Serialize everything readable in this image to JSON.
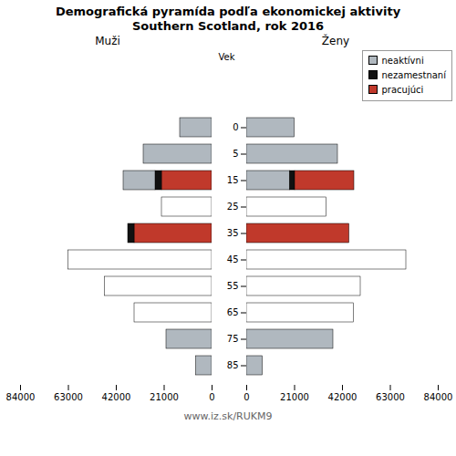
{
  "title": "Demografická pyramída podľa ekonomickej aktivity",
  "subtitle": "Southern Scotland, rok 2016",
  "caption": "www.iz.sk/RUKM9",
  "chart_data": [
    {
      "type": "bar",
      "title": "Muži",
      "orientation": "horizontal",
      "stacked": true,
      "categories": [
        85,
        75,
        65,
        55,
        45,
        35,
        25,
        15,
        5,
        0
      ],
      "series": [
        {
          "name": "pracujúci",
          "color": "#c0392b",
          "values": [
            0,
            0,
            0,
            0,
            0,
            34000,
            0,
            22000,
            0,
            0
          ]
        },
        {
          "name": "nezamestnaní",
          "color": "#111111",
          "values": [
            0,
            0,
            0,
            0,
            0,
            2800,
            0,
            2800,
            0,
            0
          ]
        },
        {
          "name": "neaktívni",
          "color": "#b0b8bf",
          "colors": [
            "#b0b8bf",
            "#b0b8bf",
            "#ffffff",
            "#ffffff",
            "#ffffff",
            "#b0b8bf",
            "#ffffff",
            "#b0b8bf",
            "#b0b8bf",
            "#b0b8bf"
          ],
          "values": [
            7000,
            20000,
            34000,
            47000,
            63000,
            0,
            22000,
            14000,
            30000,
            14000
          ]
        }
      ],
      "xlim": [
        84000,
        0
      ],
      "xticks": [
        84000,
        63000,
        42000,
        21000,
        0
      ],
      "tick_labels": "x",
      "grid": false
    },
    {
      "type": "bar",
      "title": "Ženy",
      "ylabel": "Vek",
      "orientation": "horizontal",
      "stacked": true,
      "categories": [
        85,
        75,
        65,
        55,
        45,
        35,
        25,
        15,
        5,
        0
      ],
      "series": [
        {
          "name": "neaktívni",
          "color": "#b0b8bf",
          "colors": [
            "#b0b8bf",
            "#b0b8bf",
            "#ffffff",
            "#ffffff",
            "#ffffff",
            "#b0b8bf",
            "#ffffff",
            "#b0b8bf",
            "#b0b8bf",
            "#b0b8bf"
          ],
          "values": [
            7000,
            38000,
            47000,
            50000,
            70000,
            0,
            35000,
            19000,
            40000,
            21000
          ]
        },
        {
          "name": "nezamestnaní",
          "color": "#111111",
          "values": [
            0,
            0,
            0,
            0,
            0,
            0,
            0,
            2200,
            0,
            0
          ]
        },
        {
          "name": "pracujúci",
          "color": "#c0392b",
          "values": [
            0,
            0,
            0,
            0,
            0,
            45000,
            0,
            26000,
            0,
            0
          ]
        }
      ],
      "xlim": [
        0,
        84000
      ],
      "xticks": [
        0,
        21000,
        42000,
        63000,
        84000
      ],
      "legend": "upper right",
      "grid": false
    }
  ]
}
